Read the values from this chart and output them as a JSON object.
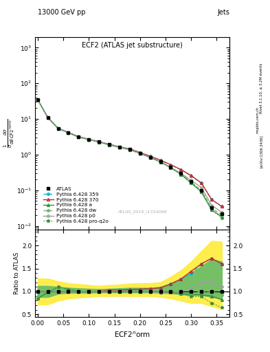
{
  "title": "ECF2 (ATLAS jet substructure)",
  "header_left": "13000 GeV pp",
  "header_right": "Jets",
  "xlabel": "ECF2$^{n}$orm",
  "ylabel_ratio": "Ratio to ATLAS",
  "right_label": "Rivet 3.1.10, ≥ 3.2M events",
  "arxiv_label": "[arXiv:1306.3436]",
  "watermark": "ATLAS_2019_I1724098",
  "mcplots": "mcplots.cern.ch",
  "x_values": [
    0.0,
    0.02,
    0.04,
    0.06,
    0.08,
    0.1,
    0.12,
    0.14,
    0.16,
    0.18,
    0.2,
    0.22,
    0.24,
    0.26,
    0.28,
    0.3,
    0.32,
    0.34,
    0.36
  ],
  "atlas_y": [
    35.0,
    11.0,
    5.5,
    4.2,
    3.2,
    2.7,
    2.3,
    1.9,
    1.6,
    1.4,
    1.1,
    0.85,
    0.65,
    0.45,
    0.3,
    0.18,
    0.1,
    0.032,
    0.022
  ],
  "p359_y": [
    35.0,
    11.0,
    5.5,
    4.2,
    3.2,
    2.7,
    2.3,
    1.95,
    1.65,
    1.45,
    1.15,
    0.9,
    0.7,
    0.52,
    0.38,
    0.25,
    0.16,
    0.055,
    0.035
  ],
  "p370_y": [
    35.0,
    11.0,
    5.5,
    4.2,
    3.2,
    2.7,
    2.3,
    1.95,
    1.65,
    1.45,
    1.15,
    0.9,
    0.7,
    0.52,
    0.38,
    0.26,
    0.16,
    0.055,
    0.035
  ],
  "pa_y": [
    35.0,
    10.8,
    5.4,
    4.1,
    3.1,
    2.65,
    2.25,
    1.88,
    1.6,
    1.38,
    1.08,
    0.83,
    0.62,
    0.43,
    0.28,
    0.16,
    0.09,
    0.028,
    0.018
  ],
  "pdw_y": [
    35.0,
    11.0,
    5.5,
    4.15,
    3.15,
    2.68,
    2.28,
    1.9,
    1.62,
    1.4,
    1.1,
    0.85,
    0.63,
    0.44,
    0.29,
    0.17,
    0.1,
    0.032,
    0.02
  ],
  "pp0_y": [
    35.0,
    11.0,
    5.5,
    4.2,
    3.2,
    2.7,
    2.3,
    1.92,
    1.62,
    1.4,
    1.1,
    0.84,
    0.63,
    0.44,
    0.3,
    0.19,
    0.12,
    0.038,
    0.024
  ],
  "pq2o_y": [
    35.0,
    10.8,
    5.4,
    4.1,
    3.1,
    2.65,
    2.25,
    1.88,
    1.6,
    1.38,
    1.08,
    0.83,
    0.62,
    0.43,
    0.28,
    0.16,
    0.09,
    0.028,
    0.017
  ],
  "ratio_359": [
    1.0,
    1.0,
    1.0,
    1.0,
    1.0,
    1.0,
    1.0,
    1.03,
    1.03,
    1.04,
    1.05,
    1.06,
    1.08,
    1.16,
    1.27,
    1.39,
    1.6,
    1.72,
    1.6
  ],
  "ratio_370": [
    1.0,
    1.0,
    1.0,
    1.0,
    1.0,
    1.0,
    1.0,
    1.03,
    1.03,
    1.04,
    1.05,
    1.06,
    1.08,
    1.16,
    1.27,
    1.44,
    1.6,
    1.72,
    1.6
  ],
  "ratio_a": [
    0.85,
    0.98,
    1.1,
    1.05,
    1.0,
    1.0,
    1.0,
    1.0,
    1.0,
    1.0,
    1.0,
    1.0,
    0.99,
    0.98,
    0.96,
    0.93,
    0.93,
    0.9,
    0.82
  ],
  "ratio_dw": [
    0.9,
    1.0,
    1.1,
    1.05,
    1.0,
    1.0,
    1.0,
    1.0,
    1.0,
    1.0,
    1.0,
    1.0,
    0.99,
    0.98,
    0.97,
    0.96,
    1.0,
    1.0,
    0.93
  ],
  "ratio_p0": [
    1.0,
    1.0,
    1.0,
    1.0,
    1.0,
    1.0,
    1.0,
    1.01,
    1.01,
    1.0,
    1.0,
    0.99,
    0.97,
    0.98,
    1.0,
    1.06,
    1.2,
    1.19,
    1.1
  ],
  "ratio_q2o": [
    0.85,
    0.98,
    1.1,
    1.05,
    1.0,
    1.0,
    1.0,
    1.0,
    1.0,
    1.0,
    1.0,
    1.0,
    0.99,
    0.98,
    0.95,
    0.89,
    0.89,
    0.75,
    0.65
  ],
  "green_band_lo": [
    0.88,
    0.88,
    0.95,
    0.97,
    0.97,
    0.97,
    0.98,
    0.98,
    0.98,
    0.98,
    0.98,
    0.98,
    0.97,
    0.96,
    0.94,
    0.92,
    0.92,
    0.88,
    0.85
  ],
  "green_band_hi": [
    1.12,
    1.12,
    1.1,
    1.08,
    1.07,
    1.06,
    1.05,
    1.06,
    1.07,
    1.08,
    1.08,
    1.08,
    1.1,
    1.18,
    1.28,
    1.4,
    1.55,
    1.7,
    1.65
  ],
  "yellow_band_lo": [
    0.72,
    0.72,
    0.8,
    0.85,
    0.87,
    0.88,
    0.9,
    0.9,
    0.9,
    0.9,
    0.9,
    0.9,
    0.88,
    0.85,
    0.8,
    0.75,
    0.75,
    0.68,
    0.62
  ],
  "yellow_band_hi": [
    1.28,
    1.28,
    1.22,
    1.18,
    1.16,
    1.14,
    1.12,
    1.14,
    1.15,
    1.17,
    1.18,
    1.18,
    1.2,
    1.32,
    1.46,
    1.65,
    1.88,
    2.1,
    2.08
  ],
  "color_359": "#00bcd4",
  "color_370": "#c62828",
  "color_a": "#388e3c",
  "color_dw": "#66bb6a",
  "color_p0": "#9e9e9e",
  "color_q2o": "#388e3c",
  "color_atlas": "#000000",
  "ylim_main": [
    0.008,
    2000
  ],
  "ylim_ratio": [
    0.45,
    2.35
  ],
  "xlim": [
    -0.005,
    0.375
  ]
}
